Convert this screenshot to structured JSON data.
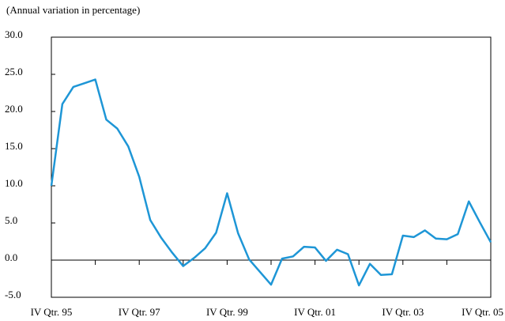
{
  "chart_data": {
    "type": "line",
    "subtitle": "(Annual variation in percentage)",
    "categories": [
      "IV Qtr. 95",
      null,
      null,
      null,
      null,
      null,
      null,
      null,
      "IV Qtr. 97",
      null,
      null,
      null,
      null,
      null,
      null,
      null,
      "IV Qtr. 99",
      null,
      null,
      null,
      null,
      null,
      null,
      null,
      "IV Qtr. 01",
      null,
      null,
      null,
      null,
      null,
      null,
      null,
      "IV Qtr. 03",
      null,
      null,
      null,
      null,
      null,
      null,
      null,
      "IV Qtr. 05"
    ],
    "series": [
      {
        "color": "#1e96d6",
        "values": [
          10.0,
          21.0,
          23.3,
          23.8,
          24.3,
          18.9,
          17.7,
          15.3,
          11.2,
          5.4,
          3.0,
          1.0,
          -0.8,
          0.3,
          1.6,
          3.7,
          9.0,
          3.6,
          0.1,
          -1.6,
          -3.3,
          0.2,
          0.5,
          1.8,
          1.7,
          -0.1,
          1.4,
          0.8,
          -3.4,
          -0.5,
          -2.0,
          -1.9,
          3.3,
          3.1,
          4.0,
          2.9,
          2.8,
          3.5,
          7.9,
          5.1,
          2.4
        ]
      }
    ],
    "ylim": [
      -5,
      30
    ],
    "yticks": [
      {
        "value": -5,
        "label": "-5.0"
      },
      {
        "value": 0,
        "label": "0.0"
      },
      {
        "value": 5,
        "label": "5.0"
      },
      {
        "value": 10,
        "label": "10.0"
      },
      {
        "value": 15,
        "label": "15.0"
      },
      {
        "value": 20,
        "label": "20.0"
      },
      {
        "value": 25,
        "label": "25.0"
      },
      {
        "value": 30,
        "label": "30.0"
      }
    ]
  }
}
